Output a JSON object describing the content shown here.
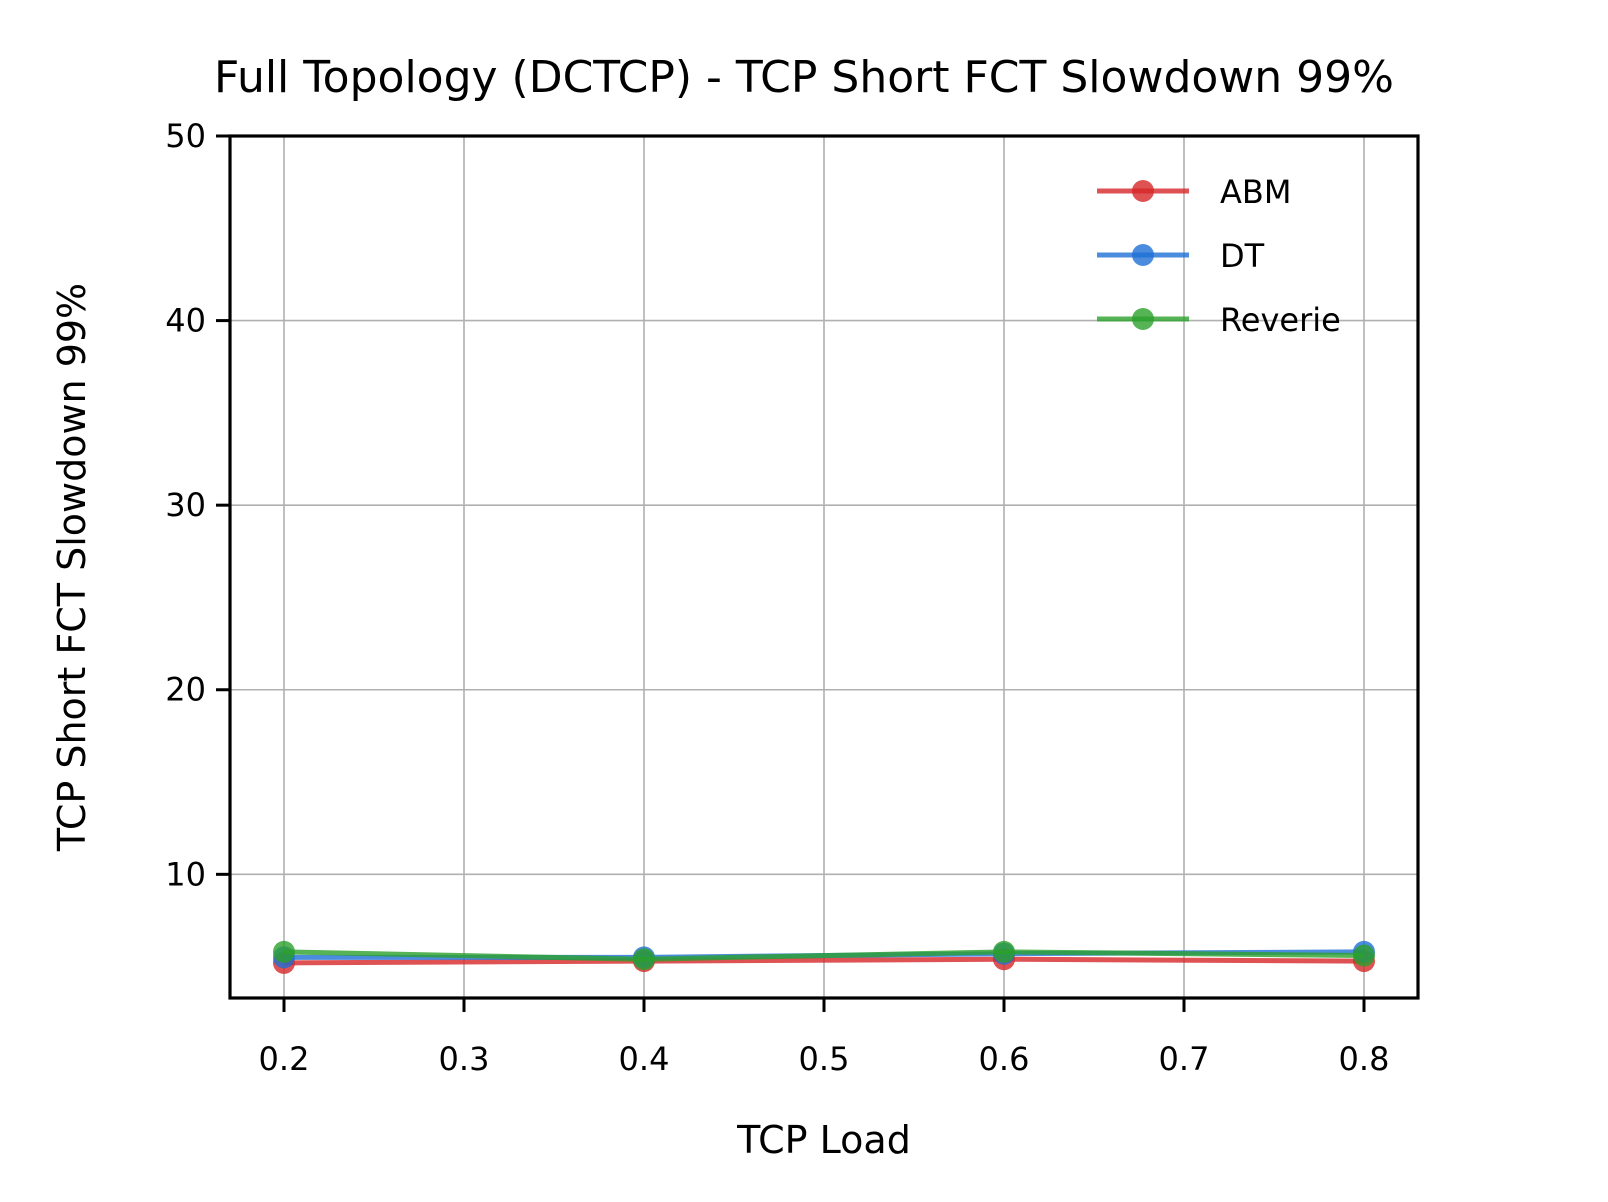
{
  "chart_data": {
    "type": "line",
    "title": "Full Topology (DCTCP) - TCP Short FCT Slowdown 99%",
    "xlabel": "TCP Load",
    "ylabel": "TCP Short FCT Slowdown 99%",
    "xlim": [
      0.17,
      0.83
    ],
    "ylim": [
      3.3,
      50
    ],
    "x_ticks": [
      "0.2",
      "0.3",
      "0.4",
      "0.5",
      "0.6",
      "0.7",
      "0.8"
    ],
    "y_ticks": [
      "10",
      "20",
      "30",
      "40",
      "50"
    ],
    "x": [
      0.2,
      0.4,
      0.6,
      0.8
    ],
    "series": [
      {
        "name": "ABM",
        "color": "#d62728",
        "values": [
          5.2,
          5.3,
          5.4,
          5.3
        ]
      },
      {
        "name": "DT",
        "color": "#1f6fd6",
        "values": [
          5.5,
          5.5,
          5.7,
          5.8
        ]
      },
      {
        "name": "Reverie",
        "color": "#2ca02c",
        "values": [
          5.8,
          5.4,
          5.8,
          5.6
        ]
      }
    ],
    "grid": true,
    "legend_position": "top-right"
  }
}
